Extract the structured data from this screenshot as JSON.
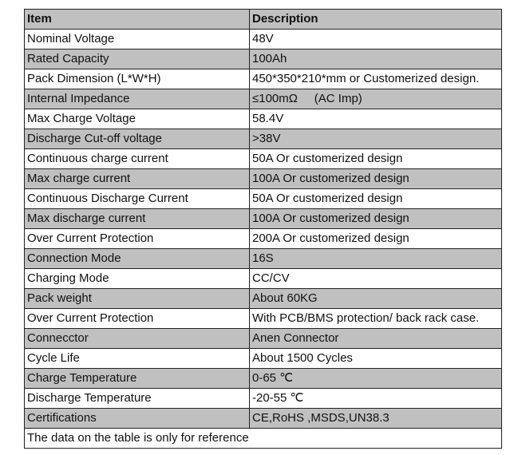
{
  "table": {
    "header": {
      "item": "Item",
      "description": "Description"
    },
    "rows": [
      {
        "item": "Nominal Voltage",
        "description": "48V"
      },
      {
        "item": "Rated Capacity",
        "description": "100Ah"
      },
      {
        "item": "Pack Dimension (L*W*H)",
        "description": "450*350*210*mm or Customerized design."
      },
      {
        "item": "Internal Impedance",
        "description": "≤100mΩ     (AC Imp)"
      },
      {
        "item": "Max Charge Voltage",
        "description": "58.4V"
      },
      {
        "item": "Discharge Cut-off voltage",
        "description": ">38V"
      },
      {
        "item": "Continuous charge current",
        "description": "50A Or customerized design"
      },
      {
        "item": "Max charge current",
        "description": "100A Or customerized design"
      },
      {
        "item": "Continuous Discharge Current",
        "description": "50A Or customerized design"
      },
      {
        "item": "Max discharge current",
        "description": "100A Or customerized design"
      },
      {
        "item": "Over Current Protection",
        "description": "200A Or customerized design"
      },
      {
        "item": "Connection Mode",
        "description": "16S"
      },
      {
        "item": "Charging Mode",
        "description": "CC/CV"
      },
      {
        "item": "Pack weight",
        "description": "About 60KG"
      },
      {
        "item": "Over Current Protection",
        "description": "With PCB/BMS protection/ back rack case."
      },
      {
        "item": "Connecctor",
        "description": "Anen Connector"
      },
      {
        "item": "Cycle Life",
        "description": "About 1500 Cycles"
      },
      {
        "item": "Charge Temperature",
        "description": "0-65 ℃"
      },
      {
        "item": "Discharge Temperature",
        "description": "-20-55 ℃"
      },
      {
        "item": "Certifications",
        "description": "CE,RoHS ,MSDS,UN38.3"
      }
    ],
    "note": "The data on the table is only for reference"
  }
}
